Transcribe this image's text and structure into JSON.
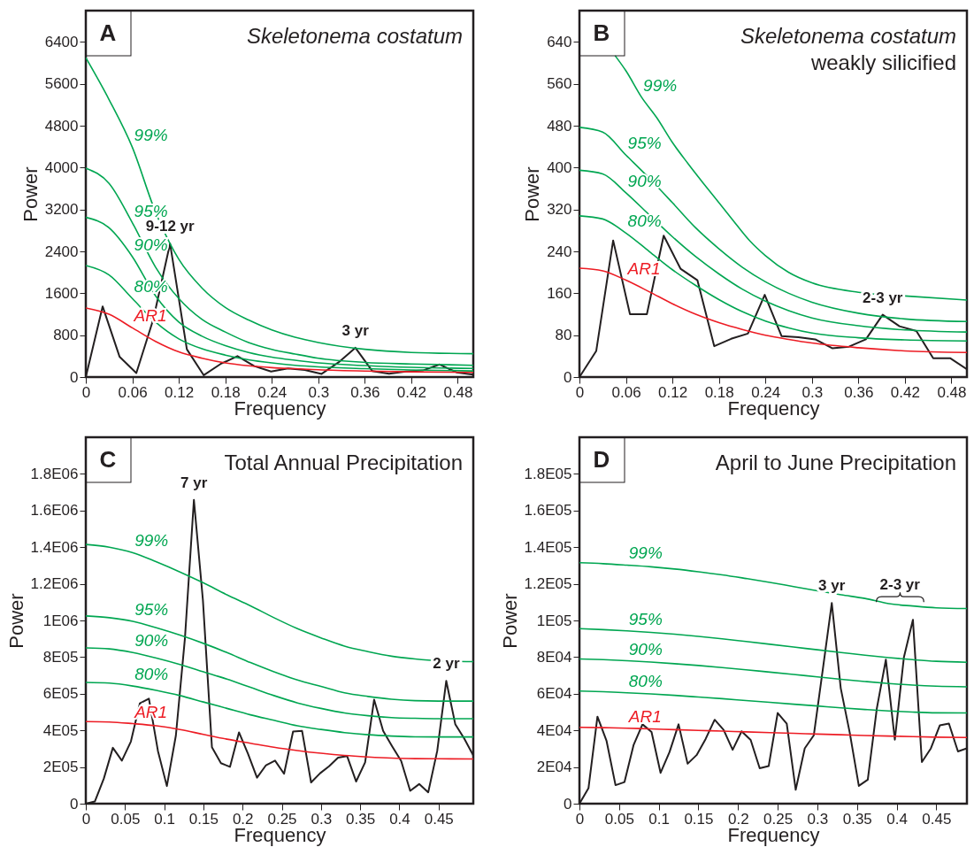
{
  "chart_data": [
    {
      "type": "line",
      "title": "Skeletonema costatum",
      "xlabel": "Frequency",
      "ylabel": "Power",
      "xlim": [
        0,
        0.5
      ],
      "ylim": [
        0,
        7000
      ],
      "xticks": [
        0,
        0.06,
        0.12,
        0.18,
        0.24,
        0.3,
        0.36,
        0.42,
        0.48
      ],
      "yticks": [
        0,
        800,
        1600,
        2400,
        3200,
        4000,
        4800,
        5600,
        6400
      ],
      "annotations": [
        "A",
        {
          "text": "9-12 yr",
          "x": 0.1087,
          "y": 2550
        },
        {
          "text": "3 yr",
          "x": 0.3478,
          "y": 560
        }
      ],
      "series": [
        {
          "color": "#231f20",
          "x": [
            0,
            0.0217,
            0.0435,
            0.0652,
            0.087,
            0.1087,
            0.1304,
            0.1522,
            0.1739,
            0.1957,
            0.2174,
            0.2391,
            0.2609,
            0.2826,
            0.3043,
            0.3261,
            0.3478,
            0.3696,
            0.3913,
            0.413,
            0.4348,
            0.4565,
            0.4783,
            0.5
          ],
          "values": [
            0,
            1350,
            390,
            75,
            1100,
            2550,
            530,
            35,
            250,
            400,
            210,
            105,
            165,
            135,
            60,
            280,
            560,
            115,
            65,
            105,
            125,
            240,
            90,
            45
          ]
        },
        {
          "name": "99%",
          "color": "#00a651",
          "x": [
            0,
            0.03,
            0.06,
            0.09,
            0.12,
            0.15,
            0.18,
            0.21,
            0.24,
            0.27,
            0.3,
            0.36,
            0.42,
            0.5
          ],
          "values": [
            6100,
            5300,
            4390,
            3150,
            2250,
            1700,
            1330,
            1090,
            900,
            760,
            660,
            530,
            470,
            446
          ]
        },
        {
          "name": "95%",
          "color": "#00a651",
          "x": [
            0,
            0.03,
            0.06,
            0.09,
            0.12,
            0.15,
            0.18,
            0.21,
            0.24,
            0.27,
            0.3,
            0.36,
            0.42,
            0.5
          ],
          "values": [
            3990,
            3700,
            2950,
            2100,
            1500,
            1100,
            860,
            660,
            530,
            440,
            360,
            280,
            250,
            225
          ]
        },
        {
          "name": "90%",
          "color": "#00a651",
          "x": [
            0,
            0.03,
            0.06,
            0.09,
            0.12,
            0.15,
            0.18,
            0.21,
            0.24,
            0.27,
            0.3,
            0.36,
            0.42,
            0.5
          ],
          "values": [
            3050,
            2850,
            2300,
            1550,
            1050,
            780,
            600,
            470,
            380,
            320,
            270,
            220,
            185,
            165
          ]
        },
        {
          "name": "80%",
          "color": "#00a651",
          "x": [
            0,
            0.03,
            0.06,
            0.09,
            0.12,
            0.15,
            0.18,
            0.21,
            0.24,
            0.27,
            0.3,
            0.36,
            0.42,
            0.5
          ],
          "values": [
            2130,
            1950,
            1500,
            1050,
            730,
            540,
            420,
            330,
            270,
            225,
            195,
            160,
            135,
            117
          ]
        },
        {
          "name": "AR1",
          "color": "#ed1c24",
          "x": [
            0,
            0.03,
            0.06,
            0.09,
            0.12,
            0.15,
            0.18,
            0.21,
            0.24,
            0.27,
            0.3,
            0.36,
            0.42,
            0.5
          ],
          "values": [
            1320,
            1200,
            940,
            680,
            480,
            360,
            270,
            215,
            180,
            160,
            140,
            115,
            100,
            88
          ]
        }
      ]
    },
    {
      "type": "line",
      "title": "Skeletonema costatum",
      "subtitle": "weakly silicified",
      "xlabel": "Frequency",
      "ylabel": "Power",
      "xlim": [
        0,
        0.5
      ],
      "ylim": [
        0,
        700
      ],
      "xticks": [
        0,
        0.06,
        0.12,
        0.18,
        0.24,
        0.3,
        0.36,
        0.42,
        0.48
      ],
      "yticks": [
        0,
        80,
        160,
        240,
        320,
        400,
        480,
        560,
        640
      ],
      "annotations": [
        "B",
        {
          "text": "2-3 yr",
          "x": 0.3913,
          "y": 119
        }
      ],
      "series": [
        {
          "color": "#231f20",
          "x": [
            0,
            0.0217,
            0.0435,
            0.0652,
            0.087,
            0.1087,
            0.1304,
            0.1522,
            0.1739,
            0.1957,
            0.2174,
            0.2391,
            0.2609,
            0.2826,
            0.3043,
            0.3261,
            0.3478,
            0.3696,
            0.3913,
            0.413,
            0.4348,
            0.4565,
            0.4783,
            0.5
          ],
          "values": [
            0,
            50,
            261,
            120,
            120,
            270,
            207,
            185,
            59,
            73,
            83,
            157,
            78,
            76,
            72,
            55,
            58,
            72,
            119,
            97,
            88,
            36,
            36,
            15
          ]
        },
        {
          "name": "99%",
          "color": "#00a651",
          "x": [
            0.046,
            0.06,
            0.08,
            0.1,
            0.12,
            0.14,
            0.16,
            0.18,
            0.2,
            0.22,
            0.24,
            0.27,
            0.3,
            0.36,
            0.42,
            0.5
          ],
          "values": [
            614,
            585,
            535,
            495,
            448,
            408,
            370,
            333,
            296,
            260,
            232,
            200,
            180,
            162,
            155,
            147
          ]
        },
        {
          "name": "95%",
          "color": "#00a651",
          "x": [
            0,
            0.03,
            0.06,
            0.09,
            0.12,
            0.15,
            0.18,
            0.21,
            0.24,
            0.27,
            0.3,
            0.36,
            0.42,
            0.5
          ],
          "values": [
            477,
            468,
            424,
            380,
            333,
            285,
            245,
            210,
            182,
            160,
            143,
            122,
            111,
            106
          ]
        },
        {
          "name": "90%",
          "color": "#00a651",
          "x": [
            0,
            0.03,
            0.06,
            0.09,
            0.12,
            0.15,
            0.18,
            0.21,
            0.24,
            0.27,
            0.3,
            0.36,
            0.42,
            0.5
          ],
          "values": [
            395,
            388,
            352,
            310,
            268,
            230,
            197,
            168,
            145,
            127,
            113,
            98,
            90,
            86
          ]
        },
        {
          "name": "80%",
          "color": "#00a651",
          "x": [
            0,
            0.03,
            0.06,
            0.09,
            0.12,
            0.15,
            0.18,
            0.21,
            0.24,
            0.27,
            0.3,
            0.36,
            0.42,
            0.5
          ],
          "values": [
            308,
            302,
            275,
            240,
            205,
            175,
            148,
            125,
            107,
            94,
            84,
            75,
            71,
            69
          ]
        },
        {
          "name": "AR1",
          "color": "#ed1c24",
          "x": [
            0,
            0.03,
            0.06,
            0.09,
            0.12,
            0.15,
            0.18,
            0.21,
            0.24,
            0.27,
            0.3,
            0.36,
            0.42,
            0.5
          ],
          "values": [
            208,
            203,
            185,
            163,
            140,
            120,
            104,
            91,
            80,
            72,
            65,
            56,
            50,
            47
          ]
        }
      ]
    },
    {
      "type": "line",
      "title": "Total Annual Precipitation",
      "xlabel": "Frequency",
      "ylabel": "Power",
      "xlim": [
        0,
        0.4943
      ],
      "ylim": [
        0,
        2000000
      ],
      "xticks": [
        0,
        0.05,
        0.1,
        0.15,
        0.2,
        0.25,
        0.3,
        0.35,
        0.4,
        0.45
      ],
      "yticks": [
        0,
        {
          "value": 200000,
          "label": "2E05"
        },
        {
          "value": 400000,
          "label": "4E05"
        },
        {
          "value": 600000,
          "label": "6E05"
        },
        {
          "value": 800000,
          "label": "8E05"
        },
        {
          "value": 1000000,
          "label": "1E06"
        },
        {
          "value": 1200000,
          "label": "1.2E06"
        },
        {
          "value": 1400000,
          "label": "1.4E06"
        },
        {
          "value": 1600000,
          "label": "1.6E06"
        },
        {
          "value": 1800000,
          "label": "1.8E06"
        }
      ],
      "annotations": [
        "C",
        {
          "text": "7 yr",
          "x": 0.1379,
          "y": 1658000
        },
        {
          "text": "2 yr",
          "x": 0.4598,
          "y": 670000
        }
      ],
      "series": [
        {
          "color": "#231f20",
          "x": [
            0,
            0.0115,
            0.023,
            0.0345,
            0.046,
            0.0575,
            0.069,
            0.0805,
            0.092,
            0.1034,
            0.1149,
            0.1264,
            0.1379,
            0.1494,
            0.1609,
            0.1724,
            0.1839,
            0.1954,
            0.2069,
            0.2184,
            0.2299,
            0.2414,
            0.2529,
            0.2644,
            0.2759,
            0.2874,
            0.2989,
            0.3103,
            0.3218,
            0.3333,
            0.3448,
            0.3563,
            0.3678,
            0.3793,
            0.3908,
            0.4023,
            0.4138,
            0.4253,
            0.4368,
            0.4483,
            0.4598,
            0.4713,
            0.4828,
            0.4943
          ],
          "values": [
            0,
            12000,
            137000,
            305000,
            235000,
            339000,
            548000,
            573000,
            288000,
            96000,
            372000,
            900000,
            1658000,
            1110000,
            308000,
            221000,
            201000,
            389000,
            272000,
            142000,
            210000,
            235000,
            163000,
            394000,
            397000,
            116000,
            166000,
            204000,
            251000,
            260000,
            121000,
            225000,
            568000,
            397000,
            313000,
            233000,
            70000,
            107000,
            62000,
            288000,
            670000,
            434000,
            355000,
            263000
          ]
        },
        {
          "name": "99%",
          "color": "#00a651",
          "x": [
            0,
            0.03,
            0.06,
            0.09,
            0.12,
            0.15,
            0.18,
            0.21,
            0.24,
            0.27,
            0.3,
            0.33,
            0.36,
            0.39,
            0.42,
            0.45,
            0.4943
          ],
          "values": [
            1415000,
            1400000,
            1370000,
            1320000,
            1265000,
            1205000,
            1140000,
            1080000,
            1015000,
            955000,
            905000,
            860000,
            830000,
            805000,
            790000,
            780000,
            775000
          ]
        },
        {
          "name": "95%",
          "color": "#00a651",
          "x": [
            0,
            0.03,
            0.06,
            0.09,
            0.12,
            0.15,
            0.18,
            0.21,
            0.24,
            0.27,
            0.3,
            0.33,
            0.36,
            0.39,
            0.42,
            0.45,
            0.4943
          ],
          "values": [
            1025000,
            1015000,
            995000,
            960000,
            920000,
            875000,
            825000,
            770000,
            720000,
            675000,
            640000,
            605000,
            585000,
            570000,
            562000,
            560000,
            560000
          ]
        },
        {
          "name": "90%",
          "color": "#00a651",
          "x": [
            0,
            0.03,
            0.06,
            0.09,
            0.12,
            0.15,
            0.18,
            0.21,
            0.24,
            0.27,
            0.3,
            0.33,
            0.36,
            0.39,
            0.42,
            0.45,
            0.4943
          ],
          "values": [
            850000,
            845000,
            825000,
            795000,
            760000,
            720000,
            680000,
            635000,
            590000,
            550000,
            520000,
            495000,
            480000,
            470000,
            466000,
            464000,
            464000
          ]
        },
        {
          "name": "80%",
          "color": "#00a651",
          "x": [
            0,
            0.03,
            0.06,
            0.09,
            0.12,
            0.15,
            0.18,
            0.21,
            0.24,
            0.27,
            0.3,
            0.33,
            0.36,
            0.39,
            0.42,
            0.45,
            0.4943
          ],
          "values": [
            662000,
            658000,
            642000,
            618000,
            590000,
            555000,
            520000,
            485000,
            455000,
            425000,
            405000,
            388000,
            376000,
            369000,
            365000,
            364000,
            364000
          ]
        },
        {
          "name": "AR1",
          "color": "#ed1c24",
          "x": [
            0,
            0.03,
            0.06,
            0.09,
            0.12,
            0.15,
            0.18,
            0.21,
            0.24,
            0.27,
            0.3,
            0.33,
            0.36,
            0.39,
            0.42,
            0.45,
            0.4943
          ],
          "values": [
            448000,
            446000,
            437000,
            425000,
            405000,
            378000,
            352000,
            330000,
            308000,
            290000,
            275000,
            263000,
            255000,
            249000,
            246000,
            245000,
            244000
          ]
        }
      ]
    },
    {
      "type": "line",
      "title": "April to June Precipitation",
      "xlabel": "Frequency",
      "ylabel": "Power",
      "xlim": [
        0,
        0.4886
      ],
      "ylim": [
        0,
        200000
      ],
      "xticks": [
        0,
        0.05,
        0.1,
        0.15,
        0.2,
        0.25,
        0.3,
        0.35,
        0.4,
        0.45
      ],
      "yticks": [
        0,
        {
          "value": 20000,
          "label": "2E04"
        },
        {
          "value": 40000,
          "label": "4E04"
        },
        {
          "value": 60000,
          "label": "6E04"
        },
        {
          "value": 80000,
          "label": "8E04"
        },
        {
          "value": 100000,
          "label": "1E05"
        },
        {
          "value": 120000,
          "label": "1.2E05"
        },
        {
          "value": 140000,
          "label": "1.4E05"
        },
        {
          "value": 160000,
          "label": "1.6E05"
        },
        {
          "value": 180000,
          "label": "1.8E05"
        }
      ],
      "annotations": [
        "D",
        {
          "text": "3 yr",
          "x": 0.3182,
          "y": 109500
        },
        {
          "text": "2-3 yr",
          "x": 0.4205,
          "y": 100400
        }
      ],
      "series": [
        {
          "color": "#231f20",
          "x": [
            0,
            0.0114,
            0.0227,
            0.0341,
            0.0455,
            0.0568,
            0.0682,
            0.0795,
            0.0909,
            0.1023,
            0.1136,
            0.125,
            0.1364,
            0.1477,
            0.1591,
            0.1705,
            0.1818,
            0.1932,
            0.2045,
            0.2159,
            0.2273,
            0.2386,
            0.25,
            0.2614,
            0.2727,
            0.2841,
            0.2955,
            0.3068,
            0.3182,
            0.3295,
            0.3409,
            0.3523,
            0.3636,
            0.375,
            0.3864,
            0.3977,
            0.4091,
            0.4205,
            0.4318,
            0.4432,
            0.4545,
            0.4659,
            0.4773,
            0.4886
          ],
          "values": [
            0,
            8400,
            47500,
            34400,
            10100,
            11800,
            31900,
            43300,
            39100,
            16800,
            28200,
            43300,
            21800,
            26500,
            35300,
            45800,
            40300,
            29400,
            39500,
            34800,
            19300,
            20500,
            49500,
            43700,
            7600,
            30200,
            37300,
            73000,
            109500,
            63000,
            38600,
            9700,
            13100,
            52000,
            78600,
            34900,
            79800,
            100400,
            22700,
            30200,
            42800,
            43700,
            28500,
            30200
          ]
        },
        {
          "name": "99%",
          "color": "#00a651",
          "x": [
            0,
            0.03,
            0.06,
            0.09,
            0.12,
            0.15,
            0.18,
            0.21,
            0.24,
            0.27,
            0.3,
            0.33,
            0.36,
            0.39,
            0.42,
            0.45,
            0.4886
          ],
          "values": [
            131500,
            131000,
            130200,
            129300,
            128100,
            126600,
            124900,
            122900,
            120800,
            118500,
            116200,
            114000,
            112000,
            109200,
            107900,
            106900,
            106500
          ]
        },
        {
          "name": "95%",
          "color": "#00a651",
          "x": [
            0,
            0.03,
            0.06,
            0.09,
            0.12,
            0.15,
            0.18,
            0.21,
            0.24,
            0.27,
            0.3,
            0.33,
            0.36,
            0.39,
            0.42,
            0.45,
            0.4886
          ],
          "values": [
            95500,
            95000,
            94300,
            93500,
            92500,
            91300,
            90000,
            88500,
            87000,
            85500,
            84000,
            82500,
            81000,
            79700,
            78600,
            77700,
            77200
          ]
        },
        {
          "name": "90%",
          "color": "#00a651",
          "x": [
            0,
            0.03,
            0.06,
            0.09,
            0.12,
            0.15,
            0.18,
            0.21,
            0.24,
            0.27,
            0.3,
            0.33,
            0.36,
            0.39,
            0.42,
            0.45,
            0.4886
          ],
          "values": [
            79000,
            78600,
            78000,
            77300,
            76400,
            75400,
            74300,
            73100,
            71800,
            70500,
            69200,
            67900,
            66700,
            65600,
            64700,
            64100,
            63800
          ]
        },
        {
          "name": "80%",
          "color": "#00a651",
          "x": [
            0,
            0.03,
            0.06,
            0.09,
            0.12,
            0.15,
            0.18,
            0.21,
            0.24,
            0.27,
            0.3,
            0.33,
            0.36,
            0.39,
            0.42,
            0.45,
            0.4886
          ],
          "values": [
            61500,
            61100,
            60500,
            59900,
            59100,
            58200,
            57300,
            56300,
            55300,
            54300,
            53300,
            52300,
            51400,
            50600,
            50000,
            49600,
            49500
          ]
        },
        {
          "name": "AR1",
          "color": "#ed1c24",
          "x": [
            0,
            0.03,
            0.06,
            0.09,
            0.12,
            0.15,
            0.18,
            0.21,
            0.24,
            0.27,
            0.3,
            0.33,
            0.36,
            0.39,
            0.42,
            0.45,
            0.4886
          ],
          "values": [
            41700,
            41500,
            41200,
            40800,
            40400,
            40000,
            39600,
            39200,
            38800,
            38400,
            38000,
            37600,
            37200,
            36900,
            36600,
            36300,
            36100
          ]
        }
      ]
    }
  ]
}
